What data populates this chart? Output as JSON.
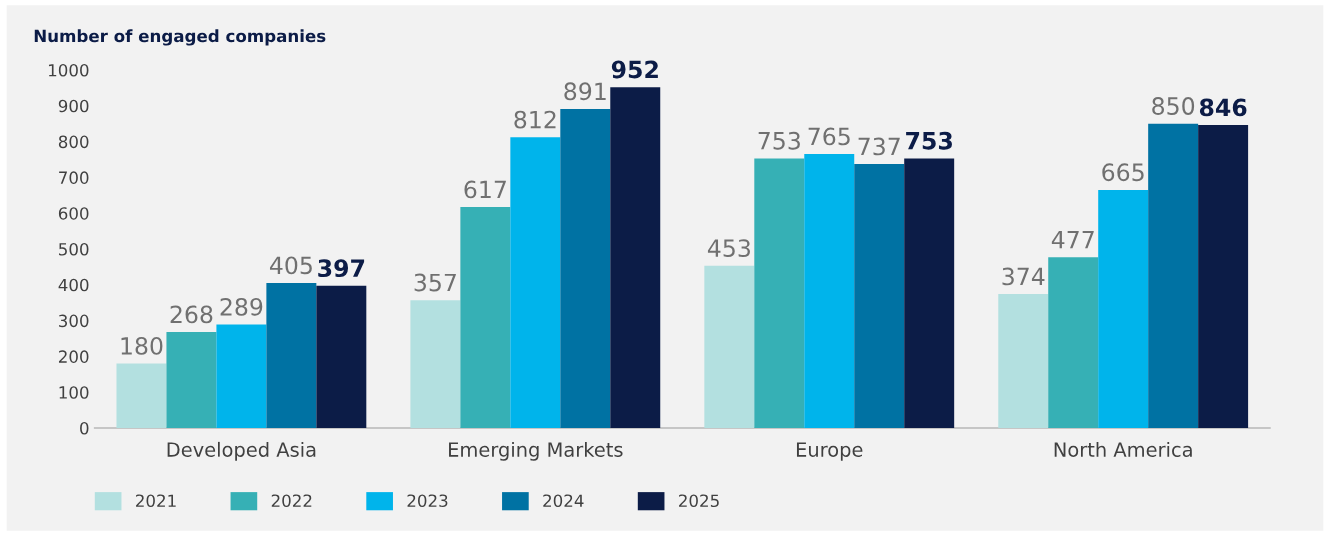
{
  "chart_data": {
    "type": "bar",
    "ylabel": "Number of engaged companies",
    "categories": [
      "Developed Asia",
      "Emerging Markets",
      "Europe",
      "North America"
    ],
    "series": [
      {
        "name": "2021",
        "color": "#b3e0e0",
        "values": [
          180,
          357,
          453,
          374
        ]
      },
      {
        "name": "2022",
        "color": "#36b0b5",
        "values": [
          268,
          617,
          753,
          477
        ]
      },
      {
        "name": "2023",
        "color": "#00b4eb",
        "values": [
          289,
          812,
          765,
          665
        ]
      },
      {
        "name": "2024",
        "color": "#0072a3",
        "values": [
          405,
          891,
          737,
          850
        ]
      },
      {
        "name": "2025",
        "color": "#0c1c47",
        "values": [
          397,
          952,
          753,
          846
        ]
      }
    ],
    "ylim": [
      0,
      1000
    ],
    "yticks": [
      0,
      100,
      200,
      300,
      400,
      500,
      600,
      700,
      800,
      900,
      1000
    ],
    "data_labels": true,
    "grid": false,
    "legend": "bottom left"
  }
}
